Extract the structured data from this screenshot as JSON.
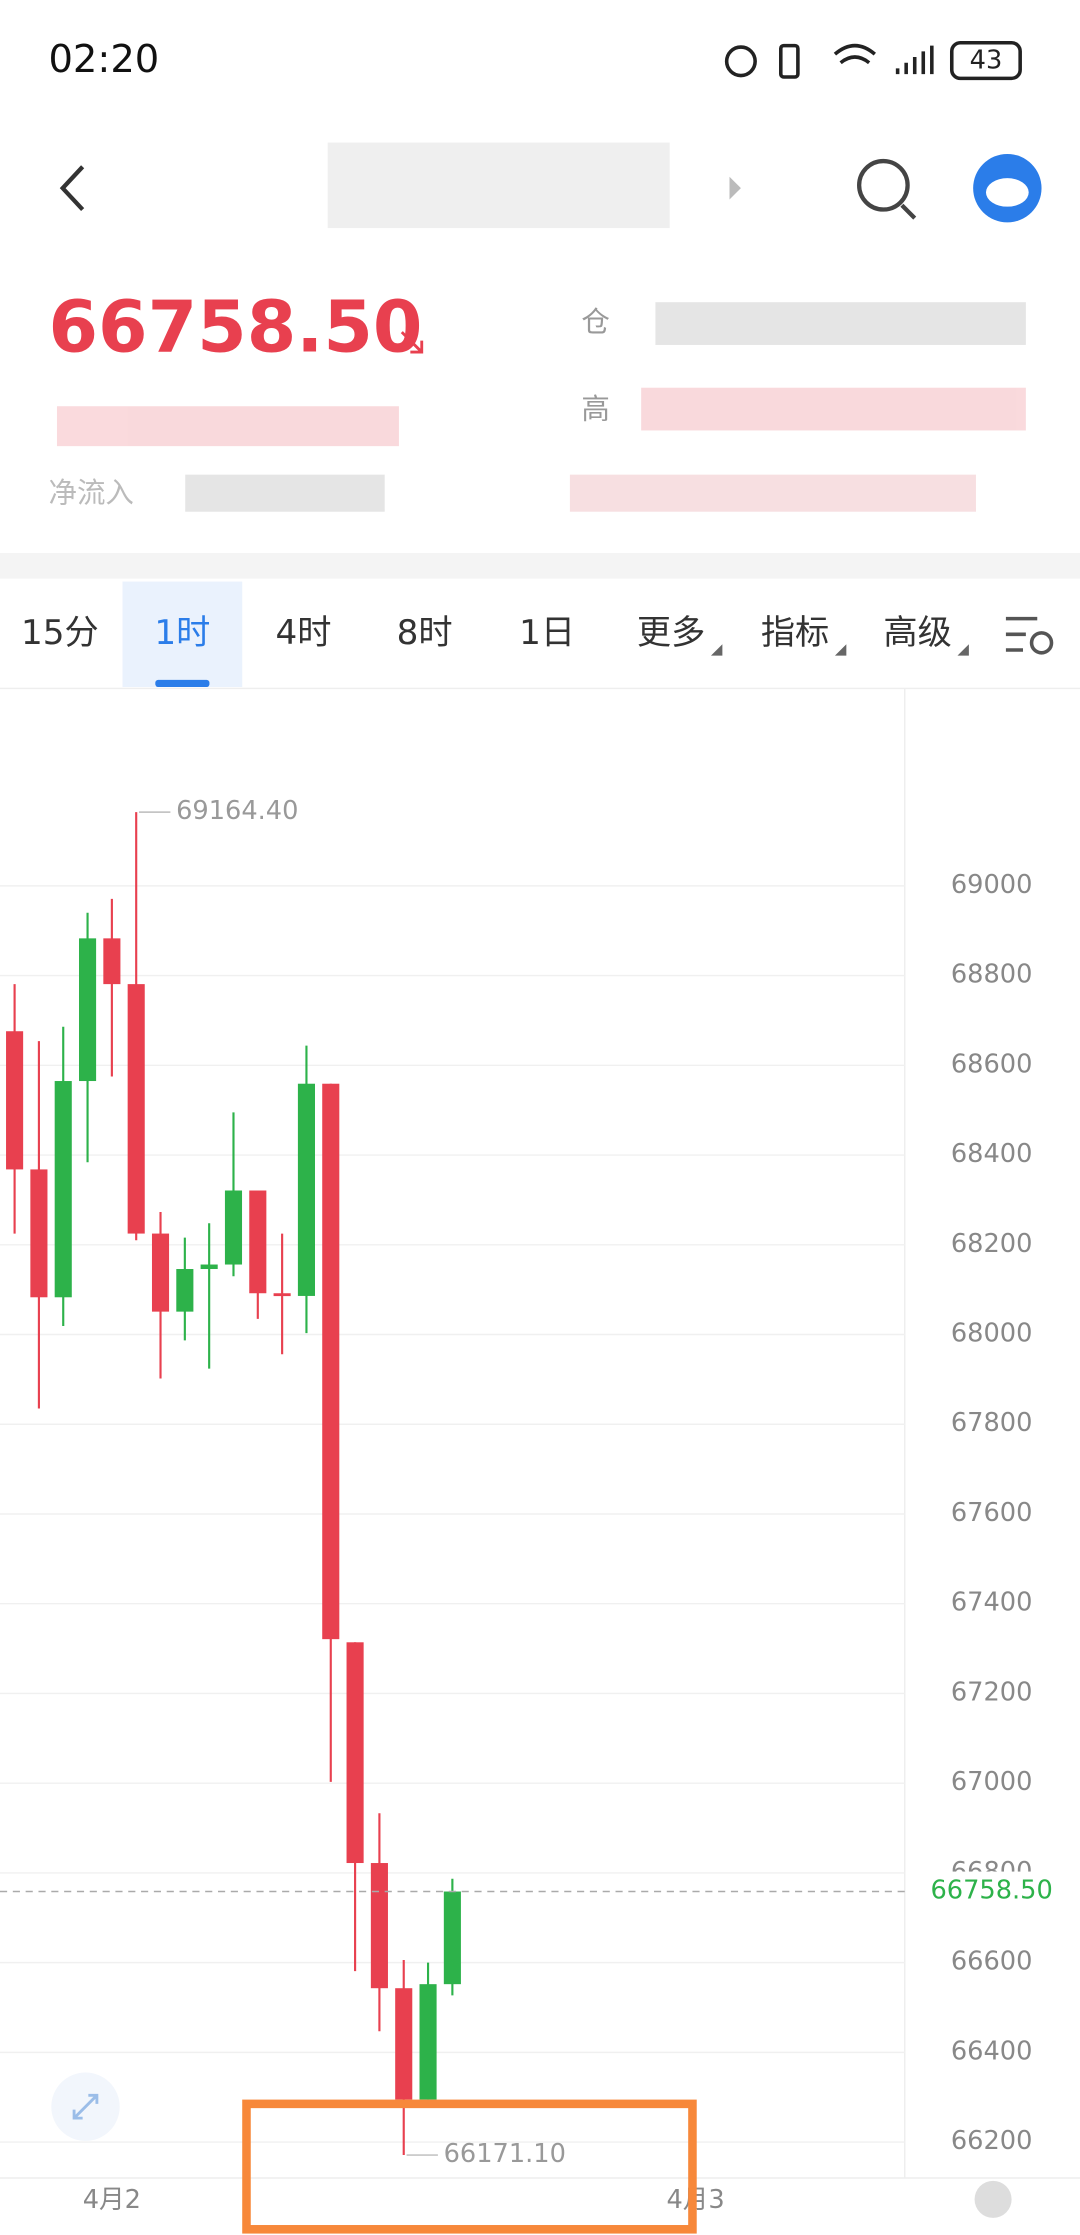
{
  "status_bar": {
    "time": "02:20",
    "battery": "43"
  },
  "quote": {
    "price": "66758.50",
    "position_label": "仓",
    "high_label": "高",
    "inflow_label": "净流入"
  },
  "tabs": [
    "15分",
    "1时",
    "4时",
    "8时",
    "1日",
    "更多",
    "指标",
    "高级"
  ],
  "chart_data": {
    "type": "candlestick",
    "up_color": "#2db24a",
    "down_color": "#e8404f",
    "open": [
      68676,
      68368,
      68083,
      68565,
      68883,
      68781,
      68225,
      68051,
      68146,
      68156,
      68321,
      68092,
      68086,
      68559,
      67314,
      66822,
      66543,
      66295,
      66552
    ],
    "high": [
      68781,
      68654,
      68686,
      68940,
      68971,
      69164.4,
      68273,
      68216,
      68248,
      68495,
      68321,
      68225,
      68644,
      68559,
      67314,
      66933,
      66606,
      66600,
      66787
    ],
    "low": [
      68225,
      67835,
      68019,
      68384,
      68575,
      68210,
      67902,
      67987,
      67924,
      68130,
      68035,
      67956,
      68003,
      67003,
      66581,
      66447,
      66171.1,
      66295,
      66527
    ],
    "close": [
      68368,
      68083,
      68565,
      68883,
      68781,
      68225,
      68051,
      68146,
      68156,
      68321,
      68092,
      68086,
      68559,
      67321,
      66822,
      66543,
      66295,
      66552,
      66758.5
    ],
    "ylim": [
      66120,
      69440
    ],
    "yticks": [
      66200,
      66400,
      66600,
      66800,
      67000,
      67200,
      67400,
      67600,
      67800,
      68000,
      68200,
      68400,
      68600,
      68800,
      69000
    ],
    "xlim": [
      -0.6,
      36.6
    ],
    "xticks": [
      {
        "value": 4,
        "label": "4月2"
      },
      {
        "value": 28,
        "label": "4月3"
      }
    ],
    "annotations": [
      {
        "index": 5,
        "value": 69164.4,
        "label": "69164.40"
      },
      {
        "index": 16,
        "value": 66171.1,
        "label": "66171.10"
      }
    ],
    "last_price": {
      "value": 66758.5,
      "label": "66758.50"
    },
    "grid": true
  }
}
